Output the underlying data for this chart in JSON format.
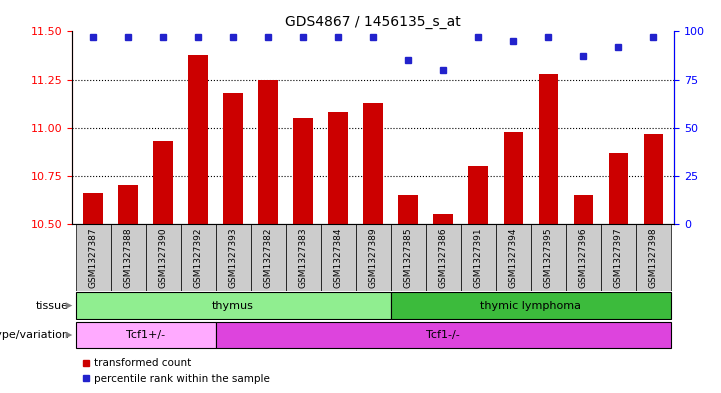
{
  "title": "GDS4867 / 1456135_s_at",
  "samples": [
    "GSM1327387",
    "GSM1327388",
    "GSM1327390",
    "GSM1327392",
    "GSM1327393",
    "GSM1327382",
    "GSM1327383",
    "GSM1327384",
    "GSM1327389",
    "GSM1327385",
    "GSM1327386",
    "GSM1327391",
    "GSM1327394",
    "GSM1327395",
    "GSM1327396",
    "GSM1327397",
    "GSM1327398"
  ],
  "red_values": [
    10.66,
    10.7,
    10.93,
    11.38,
    11.18,
    11.25,
    11.05,
    11.08,
    11.13,
    10.65,
    10.55,
    10.8,
    10.98,
    11.28,
    10.65,
    10.87,
    10.97
  ],
  "blue_values": [
    97,
    97,
    97,
    97,
    97,
    97,
    97,
    97,
    97,
    85,
    80,
    97,
    95,
    97,
    87,
    92,
    97
  ],
  "ylim_left": [
    10.5,
    11.5
  ],
  "ylim_right": [
    0,
    100
  ],
  "yticks_left": [
    10.5,
    10.75,
    11.0,
    11.25,
    11.5
  ],
  "yticks_right": [
    0,
    25,
    50,
    75,
    100
  ],
  "tissue_groups": [
    {
      "label": "thymus",
      "start": 0,
      "end": 9,
      "color": "#90EE90"
    },
    {
      "label": "thymic lymphoma",
      "start": 9,
      "end": 17,
      "color": "#3CBB3C"
    }
  ],
  "genotype_groups": [
    {
      "label": "Tcf1+/-",
      "start": 0,
      "end": 4,
      "color": "#FFAAFF"
    },
    {
      "label": "Tcf1-/-",
      "start": 4,
      "end": 17,
      "color": "#DD44DD"
    }
  ],
  "bar_color": "#CC0000",
  "dot_color": "#2222CC",
  "background_color": "#ffffff",
  "tick_bg_color": "#CCCCCC",
  "legend_red": "transformed count",
  "legend_blue": "percentile rank within the sample"
}
